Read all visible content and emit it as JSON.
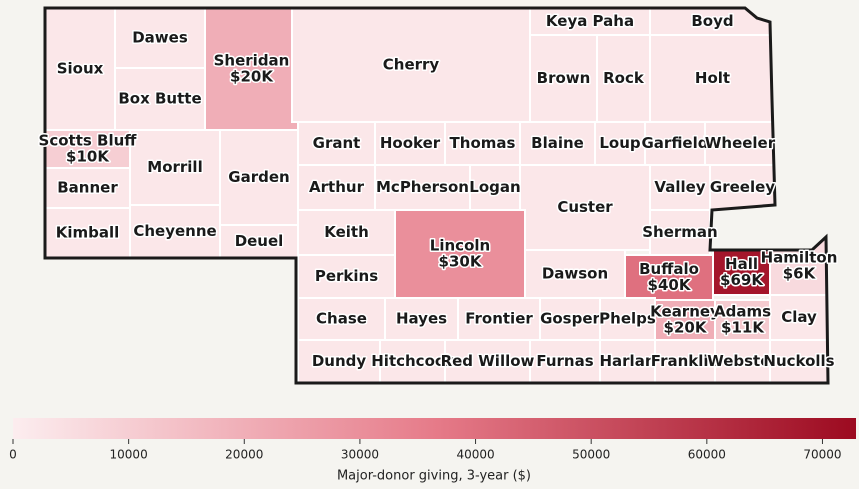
{
  "chart_data": {
    "type": "choropleth",
    "colors": [
      "#fcedef",
      "#e67b89",
      "#9c0a20"
    ],
    "clim": [
      0,
      72900
    ],
    "cticks": [
      0,
      10000,
      20000,
      30000,
      40000,
      50000,
      60000,
      70000
    ],
    "colorbar_label": "Major-donor giving, 3-year ($)",
    "regions": [
      {
        "name": "Sioux",
        "value": 2000
      },
      {
        "name": "Dawes",
        "value": 2000
      },
      {
        "name": "Box Butte",
        "value": 2000
      },
      {
        "name": "Sheridan",
        "value": 20000,
        "value_label": "$20K"
      },
      {
        "name": "Cherry",
        "value": 2000
      },
      {
        "name": "Keya Paha",
        "value": 2000
      },
      {
        "name": "Boyd",
        "value": 2000
      },
      {
        "name": "Brown",
        "value": 2000
      },
      {
        "name": "Rock",
        "value": 2000
      },
      {
        "name": "Holt",
        "value": 2000
      },
      {
        "name": "Scotts Bluff",
        "value": 10000,
        "value_label": "$10K"
      },
      {
        "name": "Banner",
        "value": 2000
      },
      {
        "name": "Kimball",
        "value": 2000
      },
      {
        "name": "Morrill",
        "value": 2000
      },
      {
        "name": "Cheyenne",
        "value": 2000
      },
      {
        "name": "Garden",
        "value": 2000
      },
      {
        "name": "Deuel",
        "value": 2000
      },
      {
        "name": "Grant",
        "value": 2000
      },
      {
        "name": "Hooker",
        "value": 2000
      },
      {
        "name": "Thomas",
        "value": 2000
      },
      {
        "name": "Blaine",
        "value": 2000
      },
      {
        "name": "Loup",
        "value": 2000
      },
      {
        "name": "Garfield",
        "value": 2000
      },
      {
        "name": "Wheeler",
        "value": 2000
      },
      {
        "name": "Arthur",
        "value": 2000
      },
      {
        "name": "McPherson",
        "value": 2000
      },
      {
        "name": "Logan",
        "value": 2000
      },
      {
        "name": "Custer",
        "value": 2000
      },
      {
        "name": "Valley",
        "value": 2000
      },
      {
        "name": "Greeley",
        "value": 2000
      },
      {
        "name": "Keith",
        "value": 2000
      },
      {
        "name": "Sherman",
        "value": 2000
      },
      {
        "name": "Lincoln",
        "value": 30000,
        "value_label": "$30K"
      },
      {
        "name": "Perkins",
        "value": 2000
      },
      {
        "name": "Dawson",
        "value": 2000
      },
      {
        "name": "Buffalo",
        "value": 40000,
        "value_label": "$40K"
      },
      {
        "name": "Hall",
        "value": 69000,
        "value_label": "$69K"
      },
      {
        "name": "Hamilton",
        "value": 6000,
        "value_label": "$6K"
      },
      {
        "name": "Chase",
        "value": 2000
      },
      {
        "name": "Hayes",
        "value": 2000
      },
      {
        "name": "Frontier",
        "value": 2000
      },
      {
        "name": "Gosper",
        "value": 2000
      },
      {
        "name": "Phelps",
        "value": 2000
      },
      {
        "name": "Kearney",
        "value": 20000,
        "value_label": "$20K"
      },
      {
        "name": "Adams",
        "value": 11000,
        "value_label": "$11K"
      },
      {
        "name": "Clay",
        "value": 2000
      },
      {
        "name": "Dundy",
        "value": 2000
      },
      {
        "name": "Hitchcock",
        "value": 2000
      },
      {
        "name": "Red Willow",
        "value": 2000
      },
      {
        "name": "Furnas",
        "value": 2000
      },
      {
        "name": "Harlan",
        "value": 2000
      },
      {
        "name": "Franklin",
        "value": 2000
      },
      {
        "name": "Webster",
        "value": 2000
      },
      {
        "name": "Nuckolls",
        "value": 2000
      }
    ]
  }
}
